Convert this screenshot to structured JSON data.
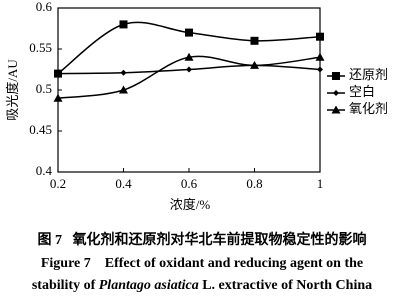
{
  "chart_data": {
    "type": "line",
    "x": [
      0.2,
      0.4,
      0.6,
      0.8,
      1
    ],
    "xlim": [
      0.2,
      1
    ],
    "xticks": [
      0.2,
      0.4,
      0.6,
      0.8,
      1
    ],
    "ylim": [
      0.4,
      0.6
    ],
    "yticks": [
      0.4,
      0.45,
      0.5,
      0.55,
      0.6
    ],
    "y_label": "吸光度/AU",
    "x_label": "浓度/%",
    "series": [
      {
        "name": "还原剂",
        "color": "#000000",
        "marker": "square",
        "values": [
          0.52,
          0.58,
          0.57,
          0.56,
          0.565
        ]
      },
      {
        "name": "空白",
        "color": "#000000",
        "marker": "diamond",
        "values": [
          0.52,
          0.521,
          0.525,
          0.53,
          0.525
        ]
      },
      {
        "name": "氧化剂",
        "color": "#000000",
        "marker": "triangle",
        "values": [
          0.49,
          0.5,
          0.54,
          0.53,
          0.54
        ]
      }
    ],
    "grid": false,
    "legend": "right"
  },
  "caption": {
    "cn": "图 7   氧化剂和还原剂对华北车前提取物稳定性的影响",
    "en_line1": "Figure 7    Effect of oxidant and reducing agent on the",
    "en_line2_a": "stability of ",
    "en_line2_italic": "Plantago asiatica",
    "en_line2_b": " L. extractive of North China"
  }
}
